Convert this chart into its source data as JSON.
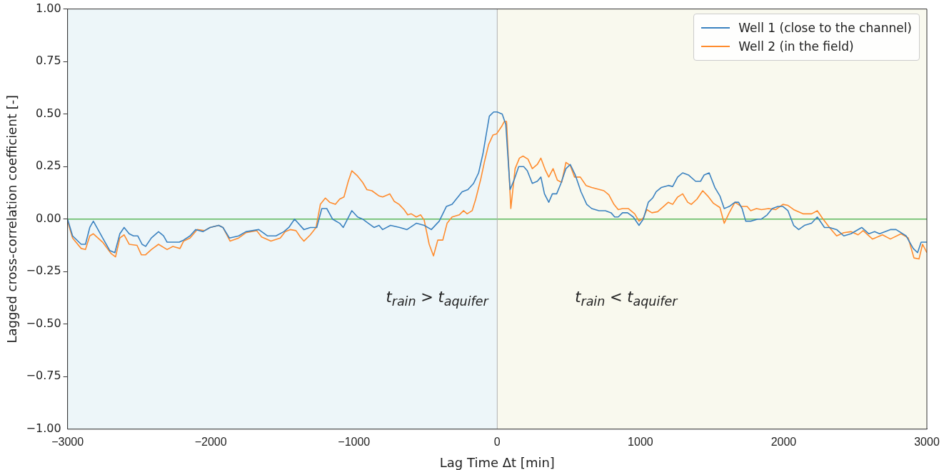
{
  "chart_data": {
    "type": "line",
    "xlabel": "Lag Time Δt [min]",
    "ylabel": "Lagged cross-correlation coefficient [-]",
    "xlim": [
      -3000,
      3000
    ],
    "ylim": [
      -1,
      1
    ],
    "xticks": [
      {
        "value": -3000,
        "label": "−3000"
      },
      {
        "value": -2000,
        "label": "−2000"
      },
      {
        "value": -1000,
        "label": "−1000"
      },
      0,
      1000,
      2000,
      3000
    ],
    "yticks": [
      {
        "value": -1,
        "label": "−1.00"
      },
      {
        "value": -0.75,
        "label": "−0.75"
      },
      {
        "value": -0.5,
        "label": "−0.50"
      },
      {
        "value": -0.25,
        "label": "−0.25"
      },
      {
        "value": 0,
        "label": "0.00"
      },
      {
        "value": 0.25,
        "label": "0.25"
      },
      {
        "value": 0.5,
        "label": "0.50"
      },
      {
        "value": 0.75,
        "label": "0.75"
      },
      {
        "value": 1,
        "label": "1.00"
      }
    ],
    "grid": false,
    "legend": "top right",
    "marker": "none",
    "line_style": "solid",
    "bands": [
      {
        "axis": "x",
        "from": -3000,
        "to": 0,
        "color": "#edf6f9"
      },
      {
        "axis": "x",
        "from": 0,
        "to": 3000,
        "color": "#f9f9ee"
      }
    ],
    "ref_lines": [
      {
        "axis": "y",
        "value": 0,
        "color": "#5cb85c"
      },
      {
        "axis": "x",
        "value": 0,
        "color": "#b0b0b0"
      }
    ],
    "annotations": [
      "t$_{rain}$ > t$_{aquifer}$",
      "t$_{rain}$ < t$_{aquifer}$"
    ],
    "series": [
      {
        "name": "Well 1 (close to the channel)",
        "color": "#3b82c0",
        "x": [
          -3000,
          -2965,
          -2905,
          -2875,
          -2845,
          -2820,
          -2755,
          -2705,
          -2670,
          -2635,
          -2605,
          -2570,
          -2540,
          -2510,
          -2480,
          -2455,
          -2415,
          -2365,
          -2330,
          -2305,
          -2245,
          -2220,
          -2190,
          -2145,
          -2105,
          -2055,
          -2005,
          -1945,
          -1915,
          -1870,
          -1805,
          -1755,
          -1665,
          -1605,
          -1545,
          -1490,
          -1455,
          -1415,
          -1350,
          -1305,
          -1260,
          -1225,
          -1190,
          -1150,
          -1100,
          -1075,
          -1015,
          -975,
          -940,
          -900,
          -860,
          -825,
          -800,
          -745,
          -680,
          -630,
          -565,
          -510,
          -460,
          -405,
          -355,
          -315,
          -280,
          -245,
          -205,
          -165,
          -130,
          -100,
          -75,
          -55,
          -25,
          0,
          35,
          60,
          90,
          120,
          150,
          185,
          210,
          245,
          280,
          305,
          330,
          360,
          385,
          415,
          445,
          480,
          510,
          545,
          585,
          625,
          660,
          710,
          755,
          795,
          820,
          845,
          875,
          910,
          950,
          990,
          1020,
          1055,
          1085,
          1110,
          1145,
          1195,
          1225,
          1260,
          1295,
          1335,
          1385,
          1420,
          1445,
          1480,
          1520,
          1555,
          1585,
          1620,
          1660,
          1685,
          1710,
          1735,
          1770,
          1820,
          1845,
          1885,
          1920,
          1960,
          1995,
          2030,
          2070,
          2105,
          2145,
          2195,
          2235,
          2285,
          2320,
          2370,
          2420,
          2470,
          2545,
          2595,
          2635,
          2670,
          2745,
          2785,
          2855,
          2905,
          2935,
          2960,
          3000
        ],
        "values": [
          0,
          -0.08,
          -0.12,
          -0.12,
          -0.04,
          -0.01,
          -0.09,
          -0.15,
          -0.16,
          -0.07,
          -0.04,
          -0.07,
          -0.08,
          -0.08,
          -0.12,
          -0.13,
          -0.09,
          -0.06,
          -0.08,
          -0.11,
          -0.11,
          -0.11,
          -0.1,
          -0.08,
          -0.05,
          -0.06,
          -0.04,
          -0.03,
          -0.04,
          -0.09,
          -0.08,
          -0.06,
          -0.05,
          -0.08,
          -0.08,
          -0.06,
          -0.04,
          0,
          -0.05,
          -0.04,
          -0.04,
          0.05,
          0.05,
          0,
          -0.02,
          -0.04,
          0.04,
          0.01,
          0,
          -0.02,
          -0.04,
          -0.03,
          -0.05,
          -0.03,
          -0.04,
          -0.05,
          -0.02,
          -0.03,
          -0.05,
          -0.01,
          0.06,
          0.07,
          0.1,
          0.13,
          0.14,
          0.17,
          0.22,
          0.31,
          0.41,
          0.49,
          0.51,
          0.51,
          0.5,
          0.45,
          0.14,
          0.19,
          0.25,
          0.25,
          0.23,
          0.17,
          0.18,
          0.2,
          0.12,
          0.08,
          0.12,
          0.12,
          0.17,
          0.24,
          0.26,
          0.21,
          0.13,
          0.07,
          0.05,
          0.04,
          0.04,
          0.03,
          0.01,
          0.01,
          0.03,
          0.03,
          0.01,
          -0.03,
          0,
          0.08,
          0.1,
          0.13,
          0.15,
          0.16,
          0.155,
          0.2,
          0.22,
          0.21,
          0.18,
          0.18,
          0.21,
          0.22,
          0.15,
          0.11,
          0.05,
          0.06,
          0.08,
          0.08,
          0.05,
          -0.01,
          -0.01,
          0,
          0,
          0.02,
          0.05,
          0.06,
          0.06,
          0.04,
          -0.03,
          -0.05,
          -0.03,
          -0.02,
          0.01,
          -0.04,
          -0.04,
          -0.05,
          -0.08,
          -0.07,
          -0.04,
          -0.07,
          -0.06,
          -0.07,
          -0.05,
          -0.05,
          -0.08,
          -0.14,
          -0.16,
          -0.11,
          -0.11
        ]
      },
      {
        "name": "Well 2 (in the field)",
        "color": "#ff8c2e",
        "x": [
          -3000,
          -2965,
          -2905,
          -2875,
          -2845,
          -2820,
          -2755,
          -2695,
          -2665,
          -2635,
          -2605,
          -2570,
          -2515,
          -2485,
          -2455,
          -2415,
          -2365,
          -2305,
          -2265,
          -2215,
          -2190,
          -2145,
          -2095,
          -2045,
          -2005,
          -1945,
          -1915,
          -1865,
          -1805,
          -1755,
          -1680,
          -1645,
          -1580,
          -1515,
          -1480,
          -1445,
          -1405,
          -1375,
          -1350,
          -1305,
          -1265,
          -1235,
          -1200,
          -1170,
          -1130,
          -1100,
          -1070,
          -1040,
          -1015,
          -975,
          -940,
          -910,
          -875,
          -825,
          -800,
          -750,
          -720,
          -685,
          -650,
          -625,
          -600,
          -565,
          -535,
          -510,
          -475,
          -445,
          -415,
          -380,
          -350,
          -315,
          -265,
          -235,
          -210,
          -175,
          -150,
          -115,
          -90,
          -60,
          -30,
          -5,
          30,
          50,
          65,
          95,
          125,
          155,
          180,
          215,
          245,
          280,
          305,
          335,
          360,
          390,
          420,
          450,
          480,
          510,
          540,
          580,
          620,
          660,
          745,
          780,
          815,
          845,
          875,
          915,
          960,
          990,
          1020,
          1045,
          1080,
          1120,
          1195,
          1225,
          1260,
          1295,
          1330,
          1355,
          1395,
          1435,
          1470,
          1510,
          1555,
          1585,
          1620,
          1660,
          1705,
          1745,
          1770,
          1810,
          1845,
          1895,
          1945,
          1995,
          2030,
          2070,
          2135,
          2195,
          2235,
          2270,
          2320,
          2370,
          2420,
          2470,
          2520,
          2555,
          2620,
          2690,
          2745,
          2820,
          2870,
          2910,
          2945,
          2970,
          3000
        ],
        "values": [
          -0.01,
          -0.09,
          -0.14,
          -0.145,
          -0.08,
          -0.07,
          -0.11,
          -0.165,
          -0.18,
          -0.09,
          -0.075,
          -0.12,
          -0.125,
          -0.17,
          -0.17,
          -0.145,
          -0.12,
          -0.145,
          -0.13,
          -0.14,
          -0.105,
          -0.09,
          -0.05,
          -0.055,
          -0.04,
          -0.03,
          -0.04,
          -0.105,
          -0.09,
          -0.065,
          -0.055,
          -0.085,
          -0.105,
          -0.09,
          -0.06,
          -0.05,
          -0.055,
          -0.085,
          -0.105,
          -0.075,
          -0.04,
          0.07,
          0.1,
          0.08,
          0.07,
          0.095,
          0.105,
          0.18,
          0.23,
          0.205,
          0.175,
          0.14,
          0.135,
          0.11,
          0.105,
          0.12,
          0.085,
          0.07,
          0.045,
          0.02,
          0.025,
          0.01,
          0.02,
          -0.005,
          -0.12,
          -0.175,
          -0.1,
          -0.1,
          -0.02,
          0.01,
          0.02,
          0.04,
          0.025,
          0.04,
          0.095,
          0.19,
          0.27,
          0.355,
          0.4,
          0.405,
          0.44,
          0.465,
          0.465,
          0.05,
          0.24,
          0.29,
          0.3,
          0.285,
          0.24,
          0.26,
          0.29,
          0.235,
          0.2,
          0.24,
          0.185,
          0.175,
          0.27,
          0.255,
          0.2,
          0.2,
          0.16,
          0.15,
          0.135,
          0.115,
          0.07,
          0.045,
          0.05,
          0.05,
          0.025,
          -0.01,
          0.005,
          0.045,
          0.03,
          0.035,
          0.08,
          0.07,
          0.105,
          0.12,
          0.08,
          0.07,
          0.095,
          0.135,
          0.11,
          0.075,
          0.055,
          -0.02,
          0.03,
          0.08,
          0.06,
          0.06,
          0.04,
          0.05,
          0.045,
          0.05,
          0.045,
          0.07,
          0.065,
          0.045,
          0.025,
          0.025,
          0.04,
          0.005,
          -0.04,
          -0.08,
          -0.065,
          -0.06,
          -0.075,
          -0.055,
          -0.095,
          -0.075,
          -0.095,
          -0.07,
          -0.09,
          -0.185,
          -0.19,
          -0.12,
          -0.16
        ]
      }
    ]
  }
}
